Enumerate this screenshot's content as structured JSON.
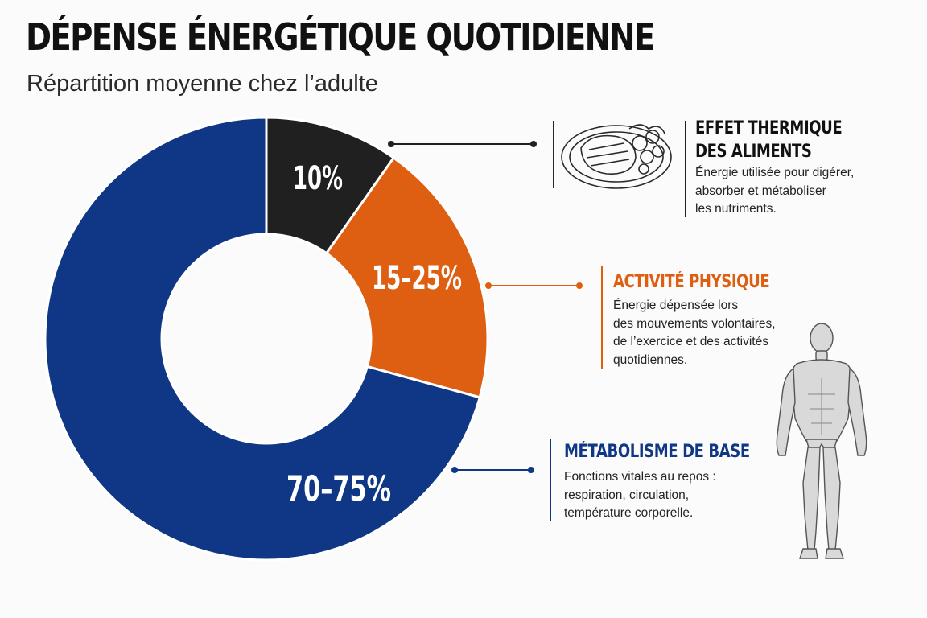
{
  "title": "DÉPENSE ÉNERGÉTIQUE QUOTIDIENNE",
  "subtitle": "Répartition moyenne chez l’adulte",
  "colors": {
    "thermique": "#202020",
    "activite": "#de5e12",
    "metabolisme": "#0f3785"
  },
  "chart_data": {
    "type": "pie",
    "title": "DÉPENSE ÉNERGÉTIQUE QUOTIDIENNE",
    "subtitle": "Répartition moyenne chez l’adulte",
    "unit": "%",
    "slices": [
      {
        "key": "thermique",
        "label": "10%",
        "value": 10,
        "color": "#202020"
      },
      {
        "key": "activite",
        "label": "15–25%",
        "value": 20,
        "color": "#de5e12"
      },
      {
        "key": "metabolisme",
        "label": "70–75%",
        "value": 72.5,
        "color": "#0f3785"
      }
    ]
  },
  "callouts": [
    {
      "key": "thermique",
      "heading_lines": [
        "EFFET THERMIQUE",
        "DES ALIMENTS"
      ],
      "desc_lines": [
        "Énergie utilisée pour digérer,",
        "absorber et métaboliser",
        "les nutriments."
      ],
      "heading_color": "#111111",
      "icon": "plate-food-icon"
    },
    {
      "key": "activite",
      "heading_lines": [
        "ACTIVITÉ PHYSIQUE"
      ],
      "desc_lines": [
        "Énergie dépensée lors",
        "des mouvements volontaires,",
        "de l’exercice et des activités",
        "quotidiennes."
      ],
      "heading_color": "#de5e12",
      "icon": ""
    },
    {
      "key": "metabolisme",
      "heading_lines": [
        "MÉTABOLISME DE BASE"
      ],
      "desc_lines": [
        "Fonctions vitales au repos :",
        "respiration, circulation,",
        "température corporelle."
      ],
      "heading_color": "#0f3785",
      "icon": "human-anatomy-icon"
    }
  ]
}
